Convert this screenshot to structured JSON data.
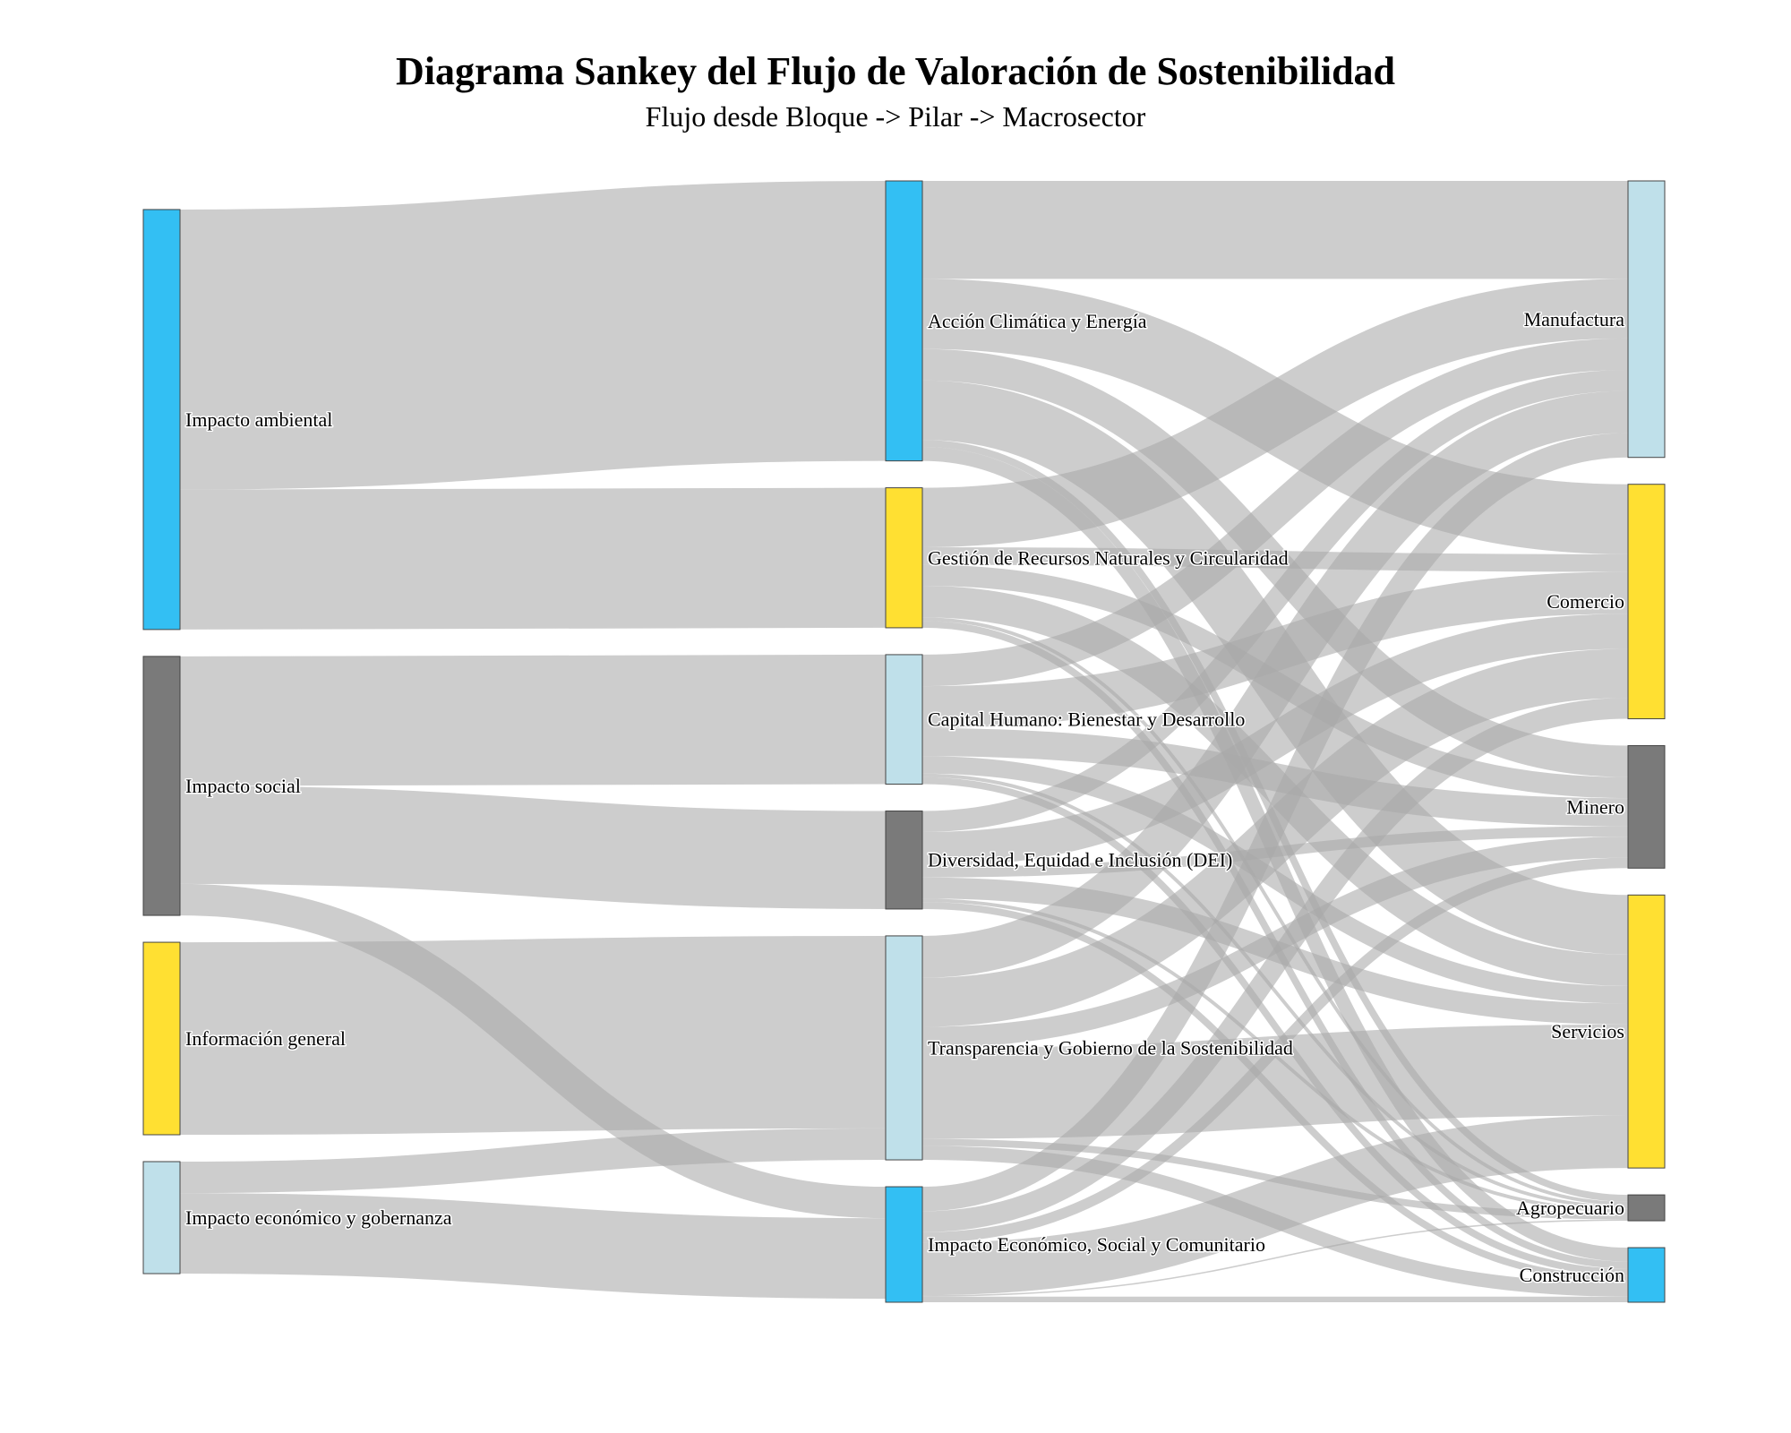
{
  "header": {
    "title": "Diagrama Sankey del Flujo de Valoración de Sostenibilidad",
    "subtitle": "Flujo desde Bloque -> Pilar -> Macrosector"
  },
  "chart_data": {
    "type": "sankey",
    "colors": {
      "link": "#a8a8a8",
      "node_border": "#444444",
      "blue": "#33BFF3",
      "gray": "#7A7A7A",
      "yellow": "#FFE032",
      "lightblue": "#BFE0EA"
    },
    "nodes": [
      {
        "id": "amb",
        "label": "Impacto ambiental",
        "column": 0,
        "color": "#33BFF3"
      },
      {
        "id": "soc",
        "label": "Impacto social",
        "column": 0,
        "color": "#7A7A7A"
      },
      {
        "id": "inf",
        "label": "Información general",
        "column": 0,
        "color": "#FFE032"
      },
      {
        "id": "eco",
        "label": "Impacto económico y gobernanza",
        "column": 0,
        "color": "#BFE0EA"
      },
      {
        "id": "ace",
        "label": "Acción Climática y Energía",
        "column": 1,
        "color": "#33BFF3"
      },
      {
        "id": "grn",
        "label": "Gestión de Recursos Naturales y Circularidad",
        "column": 1,
        "color": "#FFE032"
      },
      {
        "id": "chb",
        "label": "Capital Humano: Bienestar y Desarrollo",
        "column": 1,
        "color": "#BFE0EA"
      },
      {
        "id": "dei",
        "label": "Diversidad, Equidad e Inclusión (DEI)",
        "column": 1,
        "color": "#7A7A7A"
      },
      {
        "id": "tgs",
        "label": "Transparencia y Gobierno de la Sostenibilidad",
        "column": 1,
        "color": "#BFE0EA"
      },
      {
        "id": "ies",
        "label": "Impacto Económico, Social y Comunitario",
        "column": 1,
        "color": "#33BFF3"
      },
      {
        "id": "man",
        "label": "Manufactura",
        "column": 2,
        "color": "#BFE0EA"
      },
      {
        "id": "com",
        "label": "Comercio",
        "column": 2,
        "color": "#FFE032"
      },
      {
        "id": "min",
        "label": "Minero",
        "column": 2,
        "color": "#7A7A7A"
      },
      {
        "id": "ser",
        "label": "Servicios",
        "column": 2,
        "color": "#FFE032"
      },
      {
        "id": "agr",
        "label": "Agropecuario",
        "column": 2,
        "color": "#7A7A7A"
      },
      {
        "id": "con",
        "label": "Construcción",
        "column": 2,
        "color": "#33BFF3"
      }
    ],
    "links": [
      {
        "source": "amb",
        "target": "ace",
        "value": 40
      },
      {
        "source": "amb",
        "target": "grn",
        "value": 20
      },
      {
        "source": "soc",
        "target": "chb",
        "value": 18.5
      },
      {
        "source": "soc",
        "target": "dei",
        "value": 14
      },
      {
        "source": "soc",
        "target": "ies",
        "value": 4.5
      },
      {
        "source": "inf",
        "target": "tgs",
        "value": 27.5
      },
      {
        "source": "eco",
        "target": "tgs",
        "value": 4.5
      },
      {
        "source": "eco",
        "target": "ies",
        "value": 11.5
      },
      {
        "source": "ace",
        "target": "man",
        "value": 14
      },
      {
        "source": "ace",
        "target": "com",
        "value": 10
      },
      {
        "source": "ace",
        "target": "min",
        "value": 4.5
      },
      {
        "source": "ace",
        "target": "ser",
        "value": 8.5
      },
      {
        "source": "ace",
        "target": "agr",
        "value": 1
      },
      {
        "source": "ace",
        "target": "con",
        "value": 2
      },
      {
        "source": "grn",
        "target": "man",
        "value": 8.5
      },
      {
        "source": "grn",
        "target": "com",
        "value": 2.5
      },
      {
        "source": "grn",
        "target": "min",
        "value": 3
      },
      {
        "source": "grn",
        "target": "ser",
        "value": 4.5
      },
      {
        "source": "grn",
        "target": "agr",
        "value": 0.5
      },
      {
        "source": "grn",
        "target": "con",
        "value": 1
      },
      {
        "source": "chb",
        "target": "man",
        "value": 4.5
      },
      {
        "source": "chb",
        "target": "com",
        "value": 6
      },
      {
        "source": "chb",
        "target": "min",
        "value": 4
      },
      {
        "source": "chb",
        "target": "ser",
        "value": 2.5
      },
      {
        "source": "chb",
        "target": "agr",
        "value": 0.5
      },
      {
        "source": "chb",
        "target": "con",
        "value": 1
      },
      {
        "source": "dei",
        "target": "man",
        "value": 3
      },
      {
        "source": "dei",
        "target": "com",
        "value": 5
      },
      {
        "source": "dei",
        "target": "min",
        "value": 1.5
      },
      {
        "source": "dei",
        "target": "ser",
        "value": 3
      },
      {
        "source": "dei",
        "target": "agr",
        "value": 0.5
      },
      {
        "source": "dei",
        "target": "con",
        "value": 1
      },
      {
        "source": "tgs",
        "target": "man",
        "value": 6
      },
      {
        "source": "tgs",
        "target": "com",
        "value": 7
      },
      {
        "source": "tgs",
        "target": "min",
        "value": 3
      },
      {
        "source": "tgs",
        "target": "ser",
        "value": 13
      },
      {
        "source": "tgs",
        "target": "agr",
        "value": 1
      },
      {
        "source": "tgs",
        "target": "con",
        "value": 2
      },
      {
        "source": "ies",
        "target": "man",
        "value": 3.5
      },
      {
        "source": "ies",
        "target": "com",
        "value": 3
      },
      {
        "source": "ies",
        "target": "min",
        "value": 1.5
      },
      {
        "source": "ies",
        "target": "ser",
        "value": 7.5
      },
      {
        "source": "ies",
        "target": "agr",
        "value": 0.2
      },
      {
        "source": "ies",
        "target": "con",
        "value": 0.8
      }
    ]
  }
}
